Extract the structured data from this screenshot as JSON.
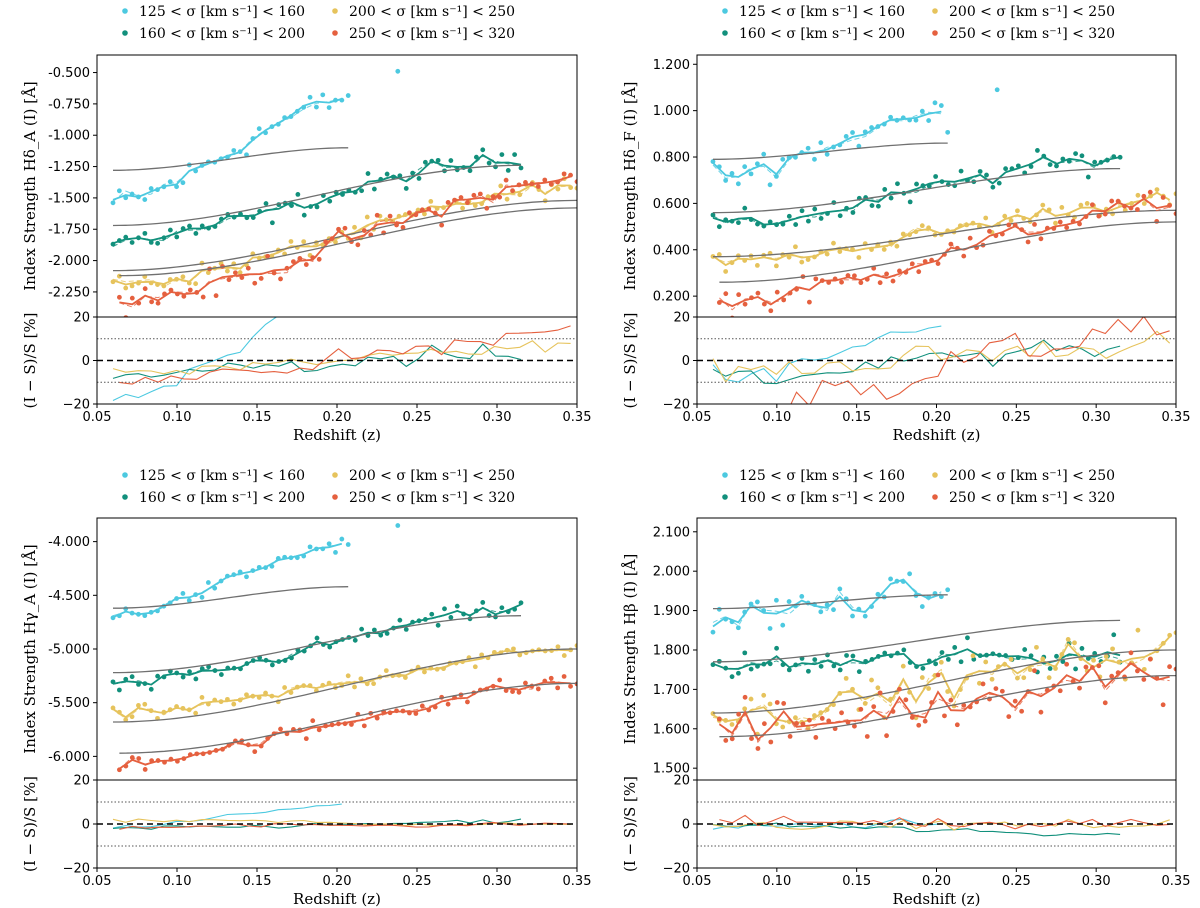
{
  "colors": {
    "s1": "#4cc9e0",
    "s2": "#12907c",
    "s3": "#e6c35c",
    "s4": "#e5603f",
    "model": "#707070"
  },
  "legend": {
    "s1": "125 < σ [km s⁻¹] < 160",
    "s2": "160 < σ [km s⁻¹] < 200",
    "s3": "200 < σ [km s⁻¹] < 250",
    "s4": "250 < σ [km s⁻¹] < 320"
  },
  "chart_data": [
    {
      "type": "scatter",
      "title": "Hδ_A",
      "ylabel": "Index Strength Hδ_A (I) [Å]",
      "resid_label": "(I − S)/S [%]",
      "xlabel": "Redshift (z)",
      "xlim": [
        0.05,
        0.35
      ],
      "ylim": [
        -2.45,
        -0.36
      ],
      "yticks": [
        -0.5,
        -0.75,
        -1.0,
        -1.25,
        -1.5,
        -1.75,
        -2.0,
        -2.25
      ],
      "ytick_labels": [
        "-0.500",
        "-0.750",
        "-1.000",
        "-1.250",
        "-1.500",
        "-1.750",
        "-2.000",
        "-2.250"
      ],
      "xticks": [
        0.05,
        0.1,
        0.15,
        0.2,
        0.25,
        0.3,
        0.35
      ],
      "xtick_labels": [
        "0.05",
        "0.10",
        "0.15",
        "0.20",
        "0.25",
        "0.30",
        "0.35"
      ],
      "resid_ylim": [
        -20,
        20
      ],
      "resid_yticks": [
        20,
        0,
        -20
      ],
      "resid_ytick_labels": [
        "20",
        "0",
        "−20"
      ],
      "series": [
        {
          "name": "125 < σ [km s⁻¹] < 160",
          "z0": 0.06,
          "z1": 0.207,
          "model_start": -1.28,
          "model_end": -1.1,
          "data_start": -1.55,
          "data_end": -0.7,
          "noise": 0.1,
          "outliers": [
            [
              0.238,
              -0.49
            ]
          ]
        },
        {
          "name": "160 < σ [km s⁻¹] < 200",
          "z0": 0.06,
          "z1": 0.315,
          "model_start": -1.72,
          "model_end": -1.24,
          "data_start": -1.85,
          "data_end": -1.18,
          "noise": 0.08,
          "outliers": []
        },
        {
          "name": "200 < σ [km s⁻¹] < 250",
          "z0": 0.06,
          "z1": 0.35,
          "model_start": -2.08,
          "model_end": -1.52,
          "data_start": -2.2,
          "data_end": -1.4,
          "noise": 0.07,
          "outliers": []
        },
        {
          "name": "250 < σ [km s⁻¹] < 320",
          "z0": 0.064,
          "z1": 0.35,
          "model_start": -2.12,
          "model_end": -1.58,
          "data_start": -2.33,
          "data_end": -1.35,
          "noise": 0.1,
          "outliers": []
        }
      ]
    },
    {
      "type": "scatter",
      "title": "Hδ_F",
      "ylabel": "Index Strength Hδ_F (I) [Å]",
      "resid_label": "(I − S)/S [%]",
      "xlabel": "Redshift (z)",
      "xlim": [
        0.05,
        0.35
      ],
      "ylim": [
        0.11,
        1.24
      ],
      "yticks": [
        1.2,
        1.0,
        0.8,
        0.6,
        0.4,
        0.2
      ],
      "ytick_labels": [
        "1.200",
        "1.000",
        "0.800",
        "0.600",
        "0.400",
        "0.200"
      ],
      "xticks": [
        0.05,
        0.1,
        0.15,
        0.2,
        0.25,
        0.3,
        0.35
      ],
      "xtick_labels": [
        "0.05",
        "0.10",
        "0.15",
        "0.20",
        "0.25",
        "0.30",
        "0.35"
      ],
      "resid_ylim": [
        -20,
        20
      ],
      "resid_yticks": [
        20,
        0,
        -20
      ],
      "resid_ytick_labels": [
        "20",
        "0",
        "−20"
      ],
      "series": [
        {
          "name": "125 < σ [km s⁻¹] < 160",
          "z0": 0.06,
          "z1": 0.207,
          "model_start": 0.79,
          "model_end": 0.86,
          "data_start": 0.72,
          "data_end": 0.99,
          "noise": 0.06,
          "outliers": [
            [
              0.238,
              1.09
            ]
          ]
        },
        {
          "name": "160 < σ [km s⁻¹] < 200",
          "z0": 0.06,
          "z1": 0.315,
          "model_start": 0.56,
          "model_end": 0.75,
          "data_start": 0.5,
          "data_end": 0.8,
          "noise": 0.05,
          "outliers": []
        },
        {
          "name": "200 < σ [km s⁻¹] < 250",
          "z0": 0.06,
          "z1": 0.35,
          "model_start": 0.37,
          "model_end": 0.57,
          "data_start": 0.34,
          "data_end": 0.62,
          "noise": 0.04,
          "outliers": []
        },
        {
          "name": "250 < σ [km s⁻¹] < 320",
          "z0": 0.064,
          "z1": 0.35,
          "model_start": 0.26,
          "model_end": 0.52,
          "data_start": 0.17,
          "data_end": 0.6,
          "noise": 0.05,
          "outliers": []
        }
      ]
    },
    {
      "type": "scatter",
      "title": "Hγ_A",
      "ylabel": "Index Strength Hγ_A (I) [Å]",
      "resid_label": "(I − S)/S [%]",
      "xlabel": "Redshift (z)",
      "xlim": [
        0.05,
        0.35
      ],
      "ylim": [
        -6.22,
        -3.78
      ],
      "yticks": [
        -4.0,
        -4.5,
        -5.0,
        -5.5,
        -6.0
      ],
      "ytick_labels": [
        "-4.000",
        "-4.500",
        "-5.000",
        "-5.500",
        "-6.000"
      ],
      "xticks": [
        0.05,
        0.1,
        0.15,
        0.2,
        0.25,
        0.3,
        0.35
      ],
      "xtick_labels": [
        "0.05",
        "0.10",
        "0.15",
        "0.20",
        "0.25",
        "0.30",
        "0.35"
      ],
      "resid_ylim": [
        -20,
        20
      ],
      "resid_yticks": [
        20,
        0,
        -20
      ],
      "resid_ytick_labels": [
        "20",
        "0",
        "−20"
      ],
      "series": [
        {
          "name": "125 < σ [km s⁻¹] < 160",
          "z0": 0.06,
          "z1": 0.207,
          "model_start": -4.62,
          "model_end": -4.42,
          "data_start": -4.7,
          "data_end": -4.02,
          "noise": 0.06,
          "outliers": [
            [
              0.238,
              -3.85
            ]
          ]
        },
        {
          "name": "160 < σ [km s⁻¹] < 200",
          "z0": 0.06,
          "z1": 0.315,
          "model_start": -5.22,
          "model_end": -4.69,
          "data_start": -5.35,
          "data_end": -4.62,
          "noise": 0.07,
          "outliers": []
        },
        {
          "name": "200 < σ [km s⁻¹] < 250",
          "z0": 0.06,
          "z1": 0.35,
          "model_start": -5.68,
          "model_end": -5.0,
          "data_start": -5.62,
          "data_end": -5.0,
          "noise": 0.07,
          "outliers": []
        },
        {
          "name": "250 < σ [km s⁻¹] < 320",
          "z0": 0.064,
          "z1": 0.35,
          "model_start": -5.97,
          "model_end": -5.32,
          "data_start": -6.05,
          "data_end": -5.3,
          "noise": 0.08,
          "outliers": []
        }
      ]
    },
    {
      "type": "scatter",
      "title": "Hβ",
      "ylabel": "Index Strength Hβ (I) [Å]",
      "resid_label": "(I − S)/S [%]",
      "xlabel": "Redshift (z)",
      "xlim": [
        0.05,
        0.35
      ],
      "ylim": [
        1.47,
        2.135
      ],
      "yticks": [
        2.1,
        2.0,
        1.9,
        1.8,
        1.7,
        1.6,
        1.5
      ],
      "ytick_labels": [
        "2.100",
        "2.000",
        "1.900",
        "1.800",
        "1.700",
        "1.600",
        "1.500"
      ],
      "xticks": [
        0.05,
        0.1,
        0.15,
        0.2,
        0.25,
        0.3,
        0.35
      ],
      "xtick_labels": [
        "0.05",
        "0.10",
        "0.15",
        "0.20",
        "0.25",
        "0.30",
        "0.35"
      ],
      "resid_ylim": [
        -20,
        20
      ],
      "resid_yticks": [
        20,
        0,
        -20
      ],
      "resid_ytick_labels": [
        "20",
        "0",
        "−20"
      ],
      "series": [
        {
          "name": "125 < σ [km s⁻¹] < 160",
          "z0": 0.06,
          "z1": 0.207,
          "model_start": 1.905,
          "model_end": 1.94,
          "data_start": 1.88,
          "data_end": 1.95,
          "noise": 0.04,
          "outliers": []
        },
        {
          "name": "160 < σ [km s⁻¹] < 200",
          "z0": 0.06,
          "z1": 0.315,
          "model_start": 1.77,
          "model_end": 1.875,
          "data_start": 1.76,
          "data_end": 1.79,
          "noise": 0.035,
          "outliers": []
        },
        {
          "name": "200 < σ [km s⁻¹] < 250",
          "z0": 0.06,
          "z1": 0.35,
          "model_start": 1.64,
          "model_end": 1.8,
          "data_start": 1.63,
          "data_end": 1.8,
          "noise": 0.05,
          "outliers": []
        },
        {
          "name": "250 < σ [km s⁻¹] < 320",
          "z0": 0.064,
          "z1": 0.35,
          "model_start": 1.58,
          "model_end": 1.735,
          "data_start": 1.59,
          "data_end": 1.75,
          "noise": 0.06,
          "outliers": []
        }
      ]
    }
  ]
}
